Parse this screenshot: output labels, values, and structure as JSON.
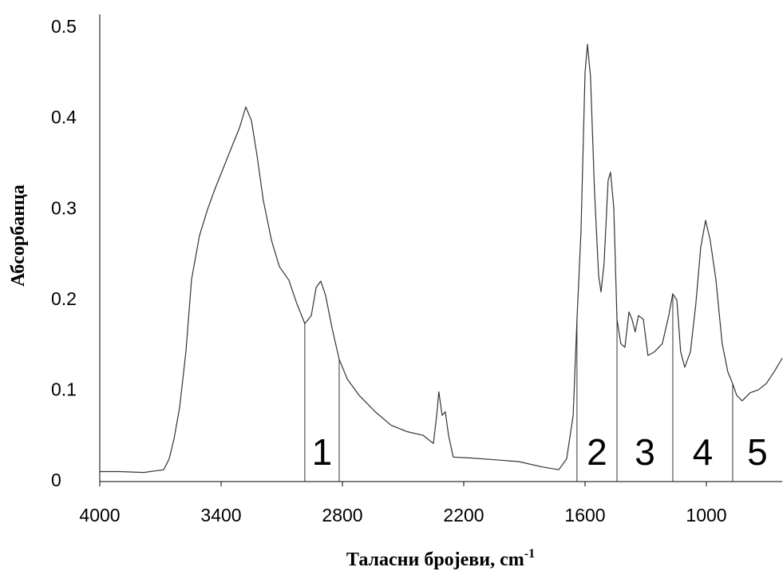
{
  "chart_data": {
    "type": "line",
    "x_label": "Таласни бројеви, cm",
    "x_label_sup": "-1",
    "y_label": "Абсорбанца",
    "xlim": [
      4000,
      625
    ],
    "ylim": [
      0,
      0.515
    ],
    "xticks": [
      4000,
      3400,
      2800,
      2200,
      1600,
      1000
    ],
    "yticks": [
      0,
      0.1,
      0.2,
      0.3,
      0.4,
      0.5
    ],
    "grid": false,
    "series": [
      {
        "color": "#333333",
        "x": [
          4000,
          3901,
          3783,
          3684,
          3657,
          3633,
          3605,
          3574,
          3546,
          3507,
          3467,
          3428,
          3388,
          3349,
          3309,
          3278,
          3250,
          3222,
          3191,
          3151,
          3112,
          3065,
          3025,
          2986,
          2954,
          2930,
          2907,
          2883,
          2852,
          2816,
          2776,
          2717,
          2638,
          2559,
          2480,
          2401,
          2350,
          2334,
          2323,
          2307,
          2291,
          2275,
          2252,
          2165,
          2046,
          1928,
          1809,
          1730,
          1691,
          1659,
          1640,
          1620,
          1600,
          1588,
          1573,
          1553,
          1533,
          1521,
          1506,
          1486,
          1474,
          1458,
          1442,
          1423,
          1403,
          1383,
          1368,
          1352,
          1336,
          1312,
          1289,
          1257,
          1218,
          1186,
          1166,
          1146,
          1127,
          1107,
          1079,
          1052,
          1028,
          1004,
          981,
          953,
          922,
          894,
          870,
          850,
          823,
          783,
          744,
          704,
          665,
          625
        ],
        "values": [
          0.011,
          0.011,
          0.01,
          0.013,
          0.025,
          0.047,
          0.082,
          0.143,
          0.223,
          0.271,
          0.3,
          0.324,
          0.346,
          0.368,
          0.39,
          0.413,
          0.398,
          0.359,
          0.31,
          0.266,
          0.237,
          0.222,
          0.196,
          0.174,
          0.183,
          0.214,
          0.221,
          0.205,
          0.17,
          0.135,
          0.113,
          0.095,
          0.077,
          0.062,
          0.055,
          0.051,
          0.042,
          0.073,
          0.099,
          0.073,
          0.077,
          0.051,
          0.027,
          0.026,
          0.024,
          0.022,
          0.016,
          0.013,
          0.025,
          0.073,
          0.179,
          0.275,
          0.451,
          0.482,
          0.447,
          0.319,
          0.227,
          0.209,
          0.24,
          0.332,
          0.341,
          0.302,
          0.179,
          0.152,
          0.148,
          0.187,
          0.179,
          0.165,
          0.183,
          0.179,
          0.139,
          0.143,
          0.152,
          0.183,
          0.207,
          0.2,
          0.143,
          0.126,
          0.143,
          0.196,
          0.258,
          0.288,
          0.266,
          0.223,
          0.152,
          0.121,
          0.108,
          0.095,
          0.089,
          0.098,
          0.101,
          0.108,
          0.121,
          0.136
        ]
      }
    ],
    "region_boundaries": {
      "x": [
        2986,
        2816,
        1640,
        1442,
        1166,
        870
      ],
      "values": [
        0.174,
        0.135,
        0.179,
        0.179,
        0.207,
        0.108
      ]
    },
    "region_labels": [
      "1",
      "2",
      "3",
      "4",
      "5"
    ]
  }
}
